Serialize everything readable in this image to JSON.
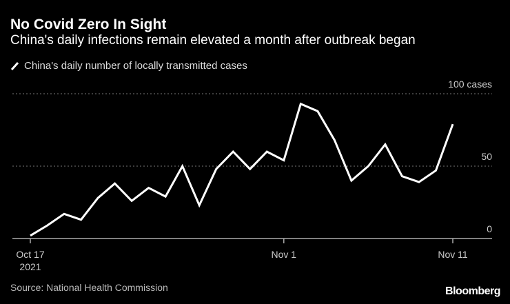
{
  "title": "No Covid Zero In Sight",
  "subtitle": "China's daily infections remain elevated a month after outbreak began",
  "source": "Source: National Health Commission",
  "logo": "Bloomberg",
  "chart_data": {
    "type": "line",
    "title": "No Covid Zero In Sight",
    "legend": [
      "China's daily number of locally transmitted cases"
    ],
    "legend_placement": "top-left",
    "x": [
      "Oct 17",
      "Oct 18",
      "Oct 19",
      "Oct 20",
      "Oct 21",
      "Oct 22",
      "Oct 23",
      "Oct 24",
      "Oct 25",
      "Oct 26",
      "Oct 27",
      "Oct 28",
      "Oct 29",
      "Oct 30",
      "Oct 31",
      "Nov 1",
      "Nov 2",
      "Nov 3",
      "Nov 4",
      "Nov 5",
      "Nov 6",
      "Nov 7",
      "Nov 8",
      "Nov 9",
      "Nov 10",
      "Nov 11"
    ],
    "series": [
      {
        "name": "China's daily number of locally transmitted cases",
        "color": "#ffffff",
        "values": [
          2,
          9,
          17,
          13,
          28,
          38,
          26,
          35,
          29,
          50,
          23,
          48,
          60,
          48,
          60,
          54,
          93,
          88,
          68,
          40,
          50,
          65,
          43,
          39,
          47,
          79
        ]
      }
    ],
    "x_ticks": [
      {
        "index": 0,
        "label": "Oct 17",
        "sublabel": "2021"
      },
      {
        "index": 15,
        "label": "Nov 1"
      },
      {
        "index": 25,
        "label": "Nov 11"
      }
    ],
    "y_ticks": [
      {
        "value": 100,
        "label": "100 cases"
      },
      {
        "value": 50,
        "label": "50"
      },
      {
        "value": 0,
        "label": "0"
      }
    ],
    "ylim": [
      0,
      100
    ],
    "grid": true,
    "xlabel": "",
    "ylabel": ""
  }
}
